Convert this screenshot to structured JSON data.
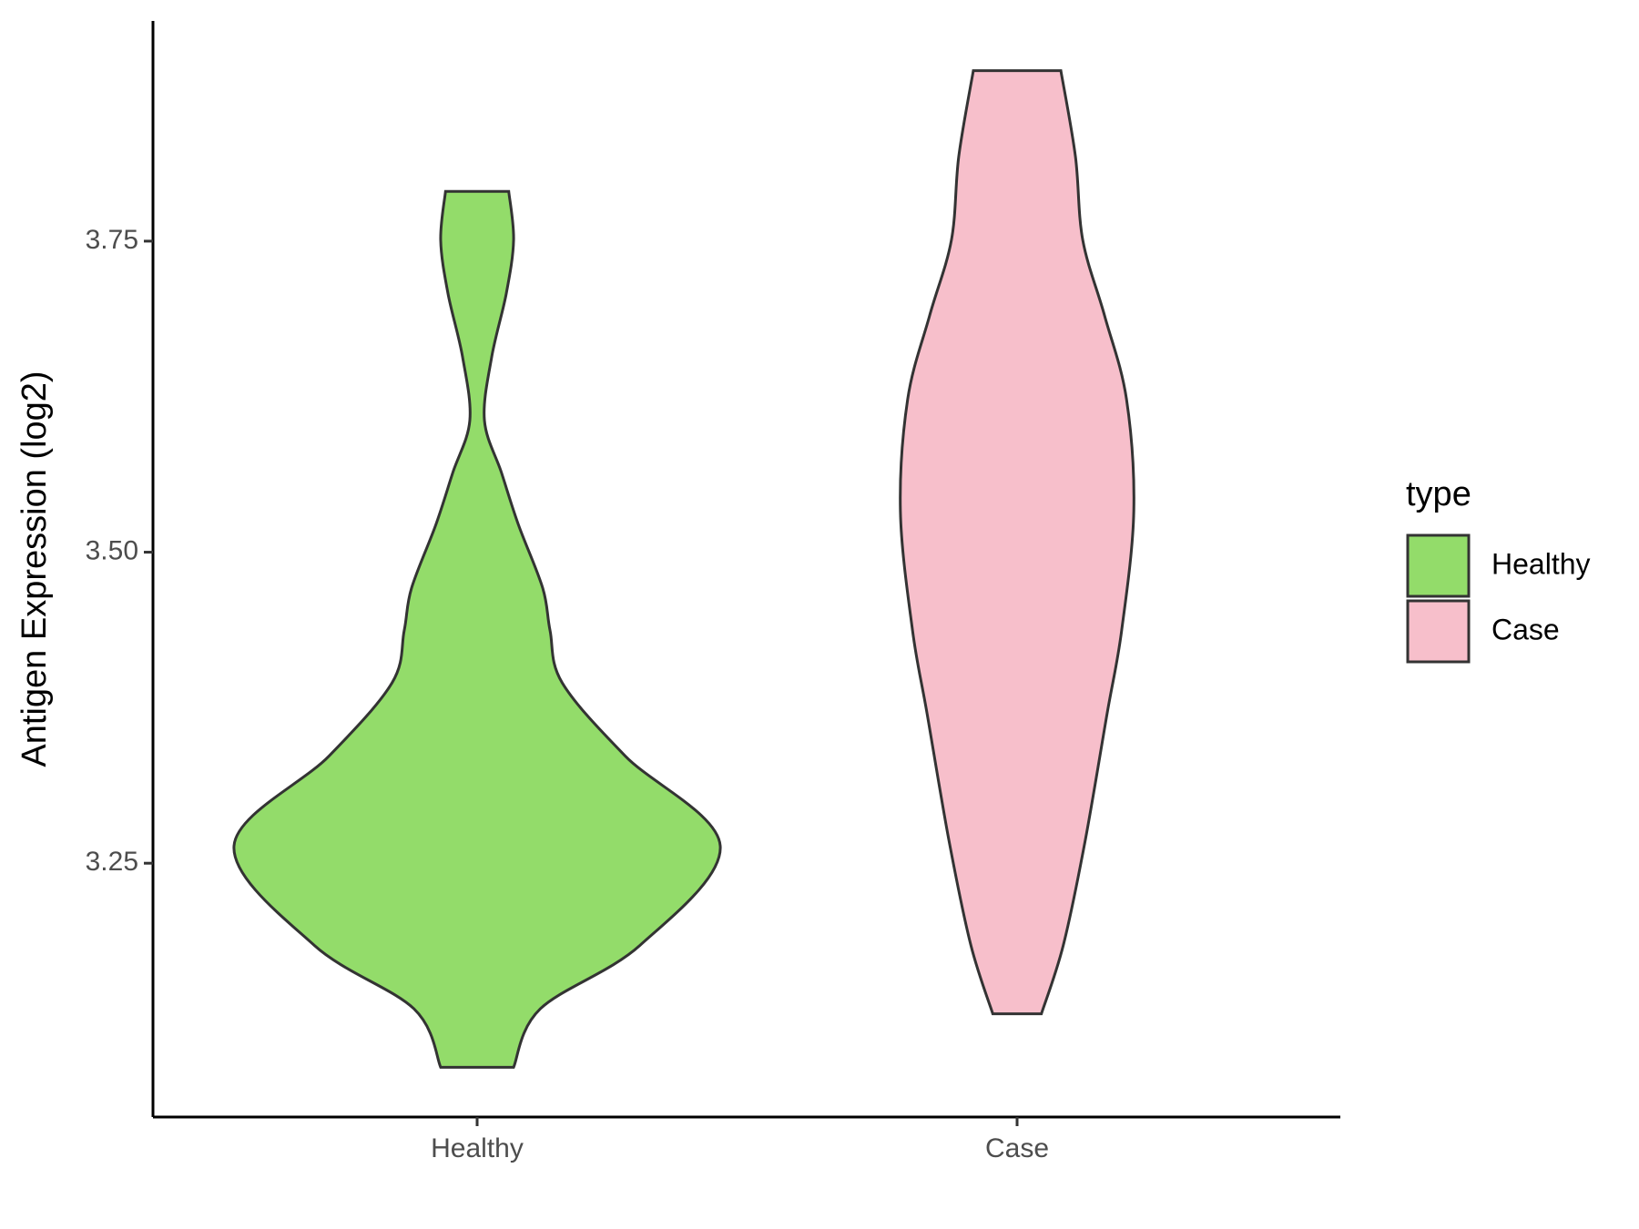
{
  "chart_data": {
    "type": "violin",
    "y_label": "Antigen Expression (log2)",
    "categories": [
      "Healthy",
      "Case"
    ],
    "legend_title": "type",
    "legend_position": "right",
    "ylim": [
      3.046,
      3.927
    ],
    "yticks": [
      {
        "value": 3.25,
        "label": "3.25"
      },
      {
        "value": 3.5,
        "label": "3.50"
      },
      {
        "value": 3.75,
        "label": "3.75"
      }
    ],
    "series": [
      {
        "name": "Healthy",
        "color": "#93dc6a",
        "y": [
          3.086,
          3.133,
          3.184,
          3.264,
          3.336,
          3.395,
          3.437,
          3.471,
          3.522,
          3.564,
          3.606,
          3.657,
          3.708,
          3.751,
          3.79
        ],
        "density": [
          0.15,
          0.26,
          0.67,
          1.0,
          0.61,
          0.35,
          0.3,
          0.27,
          0.17,
          0.1,
          0.03,
          0.06,
          0.12,
          0.15,
          0.13
        ]
      },
      {
        "name": "Case",
        "color": "#f7bfcb",
        "y": [
          3.129,
          3.184,
          3.268,
          3.37,
          3.437,
          3.533,
          3.623,
          3.69,
          3.751,
          3.818,
          3.887
        ],
        "density": [
          0.1,
          0.19,
          0.28,
          0.37,
          0.43,
          0.48,
          0.45,
          0.36,
          0.27,
          0.24,
          0.18
        ]
      }
    ]
  }
}
